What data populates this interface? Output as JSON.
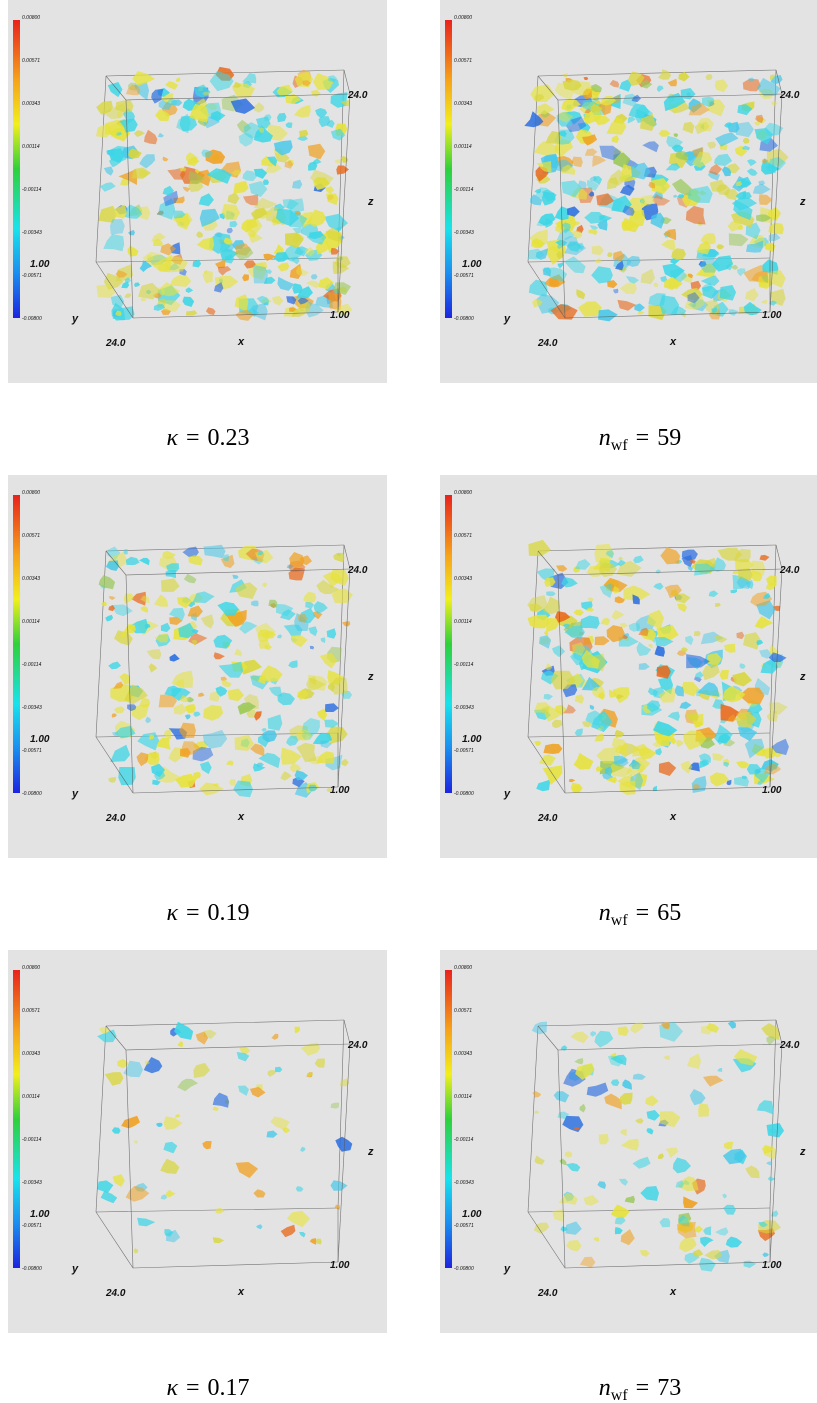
{
  "colorbar_ticks": [
    "0.00800",
    "0.00571",
    "0.00343",
    "0.00114",
    "-0.00114",
    "-0.00343",
    "-0.00571",
    "-0.00800"
  ],
  "axis_labels": {
    "x": "x",
    "y": "y",
    "z": "z"
  },
  "corner_labels": {
    "left": "1.00",
    "bottom_left": "24.0",
    "bottom_right": "1.00",
    "top_right": "24.0"
  },
  "panels": [
    {
      "caption": {
        "symbol": "κ",
        "relation": "=",
        "value": "0.23"
      }
    },
    {
      "caption": {
        "symbol": "n",
        "subscript": "wf",
        "relation": "=",
        "value": "59"
      }
    },
    {
      "caption": {
        "symbol": "κ",
        "relation": "=",
        "value": "0.19"
      }
    },
    {
      "caption": {
        "symbol": "n",
        "subscript": "wf",
        "relation": "=",
        "value": "65"
      }
    },
    {
      "caption": {
        "symbol": "κ",
        "relation": "=",
        "value": "0.17"
      }
    },
    {
      "caption": {
        "symbol": "n",
        "subscript": "wf",
        "relation": "=",
        "value": "73"
      }
    }
  ]
}
